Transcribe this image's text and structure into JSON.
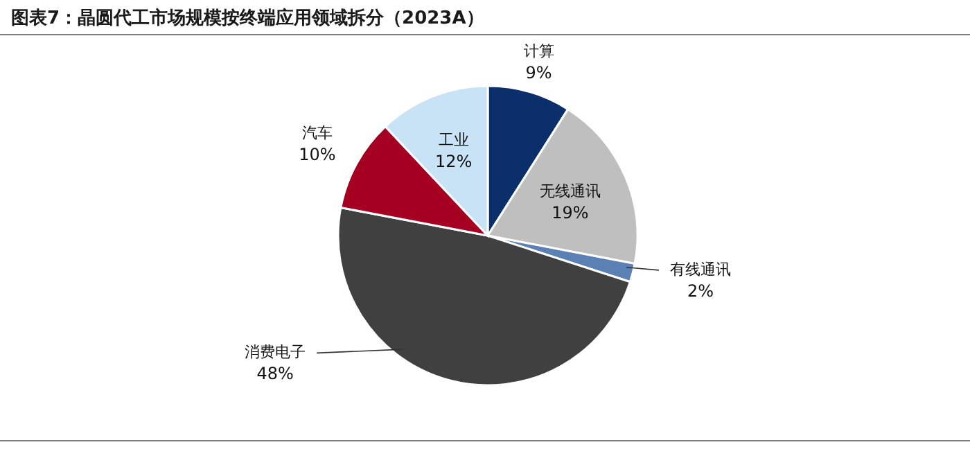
{
  "chart_data": {
    "type": "pie",
    "title": "图表7：晶圆代工市场规模按终端应用领域拆分（2023A）",
    "categories": [
      "计算",
      "无线通讯",
      "有线通讯",
      "消费电子",
      "汽车",
      "工业"
    ],
    "values": [
      9,
      19,
      2,
      48,
      10,
      12
    ],
    "value_labels": [
      "9%",
      "19%",
      "2%",
      "48%",
      "10%",
      "12%"
    ],
    "colors": [
      "#0b2f6b",
      "#bfbfbf",
      "#5b80b4",
      "#404040",
      "#a50021",
      "#c9e3f6"
    ]
  }
}
